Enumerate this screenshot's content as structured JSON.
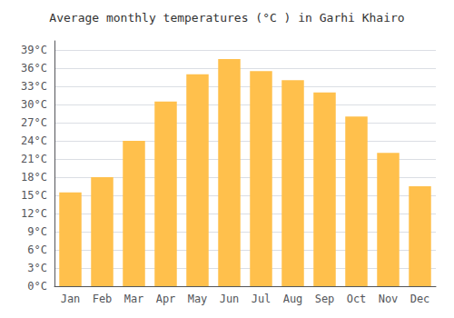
{
  "chart_data": {
    "type": "bar",
    "title": "Average monthly temperatures (°C ) in Garhi Khairo",
    "categories": [
      "Jan",
      "Feb",
      "Mar",
      "Apr",
      "May",
      "Jun",
      "Jul",
      "Aug",
      "Sep",
      "Oct",
      "Nov",
      "Dec"
    ],
    "values": [
      15.5,
      18.0,
      24.0,
      30.5,
      35.0,
      37.5,
      35.5,
      34.0,
      32.0,
      28.0,
      22.0,
      16.5
    ],
    "color": "#FFC04C",
    "ylim": [
      0,
      40.5
    ],
    "yticks": [
      {
        "value": 0,
        "label": "0°C"
      },
      {
        "value": 3,
        "label": "3°C"
      },
      {
        "value": 6,
        "label": "6°C"
      },
      {
        "value": 9,
        "label": "9°C"
      },
      {
        "value": 12,
        "label": "12°C"
      },
      {
        "value": 15,
        "label": "15°C"
      },
      {
        "value": 18,
        "label": "18°C"
      },
      {
        "value": 21,
        "label": "21°C"
      },
      {
        "value": 24,
        "label": "24°C"
      },
      {
        "value": 27,
        "label": "27°C"
      },
      {
        "value": 30,
        "label": "30°C"
      },
      {
        "value": 33,
        "label": "33°C"
      },
      {
        "value": 36,
        "label": "36°C"
      },
      {
        "value": 39,
        "label": "39°C"
      }
    ],
    "grid": true
  }
}
